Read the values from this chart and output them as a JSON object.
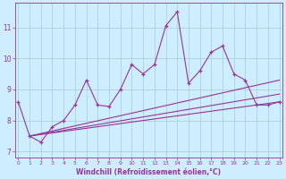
{
  "xlabel": "Windchill (Refroidissement éolien,°C)",
  "x": [
    0,
    1,
    2,
    3,
    4,
    5,
    6,
    7,
    8,
    9,
    10,
    11,
    12,
    13,
    14,
    15,
    16,
    17,
    18,
    19,
    20,
    21,
    22,
    23
  ],
  "y_main": [
    8.6,
    7.5,
    7.3,
    7.8,
    8.0,
    8.5,
    9.3,
    8.5,
    8.45,
    9.0,
    9.8,
    9.5,
    9.8,
    11.05,
    11.5,
    9.2,
    9.6,
    10.2,
    10.4,
    9.5,
    9.3,
    8.5,
    8.5,
    8.6
  ],
  "y_line1_x": [
    1,
    23
  ],
  "y_line1_y": [
    7.5,
    9.3
  ],
  "y_line2_x": [
    1,
    23
  ],
  "y_line2_y": [
    7.5,
    8.85
  ],
  "y_line3_x": [
    1,
    23
  ],
  "y_line3_y": [
    7.5,
    8.6
  ],
  "line_color": "#993399",
  "bg_color": "#cceeff",
  "grid_color": "#aacccc",
  "ylim": [
    6.8,
    11.8
  ],
  "yticks": [
    7,
    8,
    9,
    10,
    11
  ],
  "xlim": [
    -0.3,
    23.3
  ],
  "xticks": [
    0,
    1,
    2,
    3,
    4,
    5,
    6,
    7,
    8,
    9,
    10,
    11,
    12,
    13,
    14,
    15,
    16,
    17,
    18,
    19,
    20,
    21,
    22,
    23
  ]
}
